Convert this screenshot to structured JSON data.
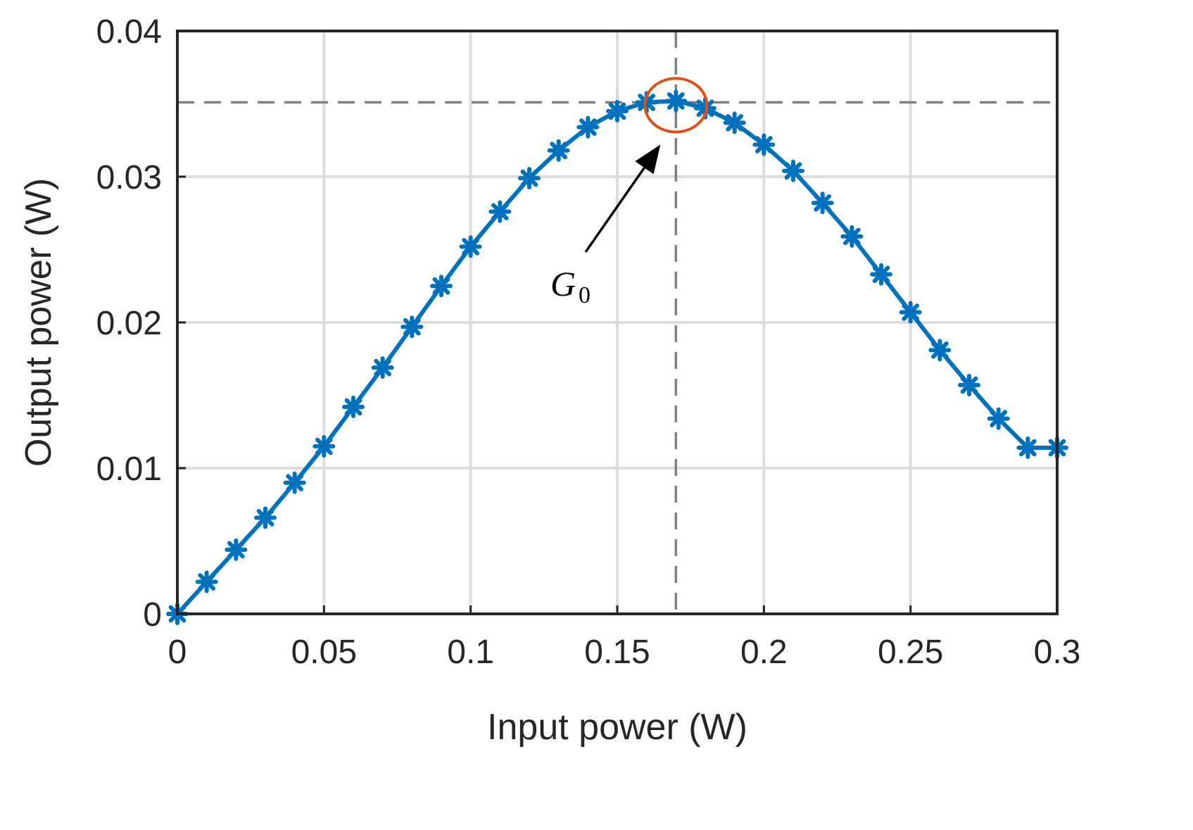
{
  "chart_data": {
    "type": "line",
    "title": "",
    "xlabel": "Input power (W)",
    "ylabel": "Output power (W)",
    "xlim": [
      0,
      0.3
    ],
    "ylim": [
      0,
      0.04
    ],
    "x_ticks": [
      0,
      0.05,
      0.1,
      0.15,
      0.2,
      0.25,
      0.3
    ],
    "x_tick_labels": [
      "0",
      "0.05",
      "0.1",
      "0.15",
      "0.2",
      "0.25",
      "0.3"
    ],
    "y_ticks": [
      0,
      0.01,
      0.02,
      0.03,
      0.04
    ],
    "y_tick_labels": [
      "0",
      "0.01",
      "0.02",
      "0.03",
      "0.04"
    ],
    "grid": true,
    "legend": "none",
    "series": [
      {
        "color": "#0072BD",
        "marker": "asterisk",
        "x": [
          0,
          0.01,
          0.02,
          0.03,
          0.04,
          0.05,
          0.06,
          0.07,
          0.08,
          0.09,
          0.1,
          0.11,
          0.12,
          0.13,
          0.14,
          0.15,
          0.16,
          0.17,
          0.18,
          0.19,
          0.2,
          0.21,
          0.22,
          0.23,
          0.24,
          0.25,
          0.26,
          0.27,
          0.28,
          0.29,
          0.3
        ],
        "y": [
          0,
          0.0022,
          0.0044,
          0.0066,
          0.009,
          0.0115,
          0.0142,
          0.0169,
          0.0197,
          0.0225,
          0.0252,
          0.0276,
          0.0299,
          0.0318,
          0.0334,
          0.0345,
          0.0351,
          0.0352,
          0.0347,
          0.0337,
          0.0322,
          0.0304,
          0.0282,
          0.0259,
          0.0233,
          0.0207,
          0.0181,
          0.0157,
          0.0134,
          0.0114,
          0.0114
        ]
      }
    ],
    "reference_lines": {
      "vertical_x": 0.17,
      "horizontal_y": 0.0351,
      "color": "#808080",
      "style": "dashed"
    },
    "annotation": {
      "label": "G",
      "subscript": "0",
      "target": [
        0.17,
        0.0351
      ],
      "highlight_color": "#D95319",
      "arrow_color": "#000000"
    }
  }
}
